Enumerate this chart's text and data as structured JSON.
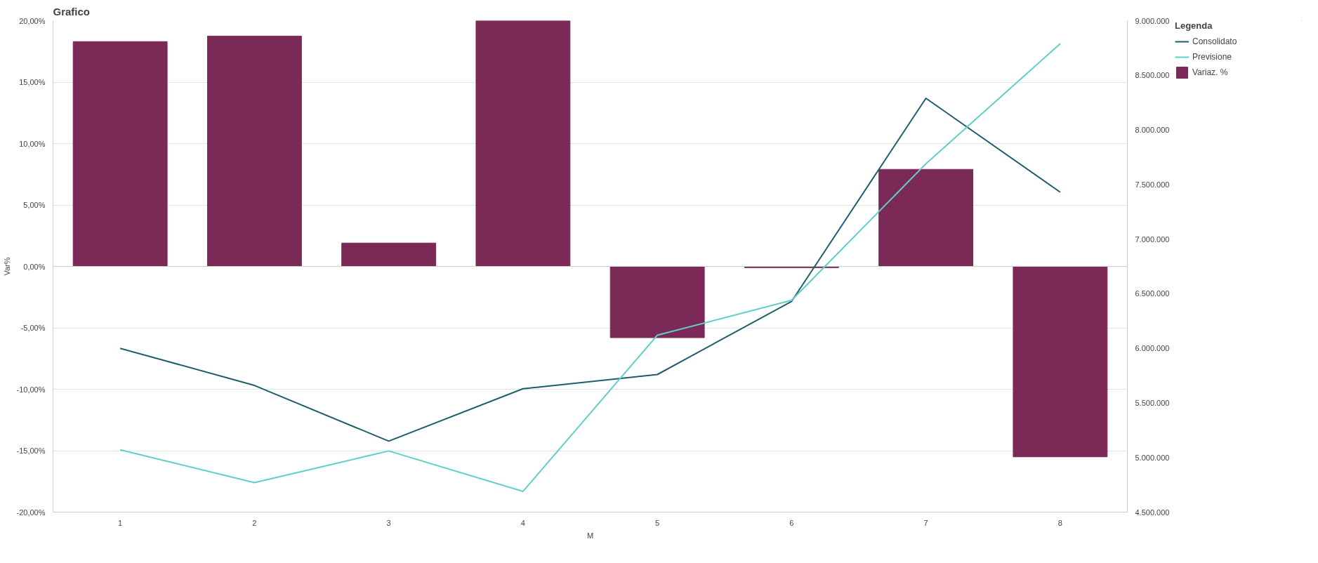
{
  "chart_data": {
    "type": "bar",
    "title": "Grafico",
    "xlabel": "M",
    "ylabel": "Var%",
    "legend_title": "Legenda",
    "legend": "right",
    "grid": "y",
    "categories": [
      "1",
      "2",
      "3",
      "4",
      "5",
      "6",
      "7",
      "8"
    ],
    "series": [
      {
        "name": "Consolidato",
        "type": "line",
        "axis": "y2",
        "color": "#1f5c6b",
        "values": [
          6000000,
          5660000,
          5150000,
          5630000,
          5760000,
          6430000,
          8290000,
          7430000
        ]
      },
      {
        "name": "Previsione",
        "type": "line",
        "axis": "y2",
        "color": "#5ecfc9",
        "values": [
          5070000,
          4770000,
          5060000,
          4690000,
          6120000,
          6440000,
          7690000,
          8790000
        ]
      },
      {
        "name": "Variaz. %",
        "type": "bar",
        "color": "#7b2957",
        "values": [
          18.3,
          18.75,
          1.9,
          20.0,
          -5.8,
          -0.1,
          7.9,
          -15.5
        ]
      }
    ],
    "ylim": [
      -20,
      20
    ],
    "yticks": [
      {
        "value": -20,
        "label": "-20,00%"
      },
      {
        "value": -15,
        "label": "-15,00%"
      },
      {
        "value": -10,
        "label": "-10,00%"
      },
      {
        "value": -5,
        "label": "-5,00%"
      },
      {
        "value": 0,
        "label": "0,00%"
      },
      {
        "value": 5,
        "label": "5,00%"
      },
      {
        "value": 10,
        "label": "10,00%"
      },
      {
        "value": 15,
        "label": "15,00%"
      },
      {
        "value": 20,
        "label": "20,00%"
      }
    ],
    "y2lim": [
      4500000,
      9000000
    ],
    "y2ticks": [
      {
        "value": 4500000,
        "label": "4.500.000"
      },
      {
        "value": 5000000,
        "label": "5.000.000"
      },
      {
        "value": 5500000,
        "label": "5.500.000"
      },
      {
        "value": 6000000,
        "label": "6.000.000"
      },
      {
        "value": 6500000,
        "label": "6.500.000"
      },
      {
        "value": 7000000,
        "label": "7.000.000"
      },
      {
        "value": 7500000,
        "label": "7.500.000"
      },
      {
        "value": 8000000,
        "label": "8.000.000"
      },
      {
        "value": 8500000,
        "label": "8.500.000"
      },
      {
        "value": 9000000,
        "label": "9.000.000"
      }
    ]
  }
}
